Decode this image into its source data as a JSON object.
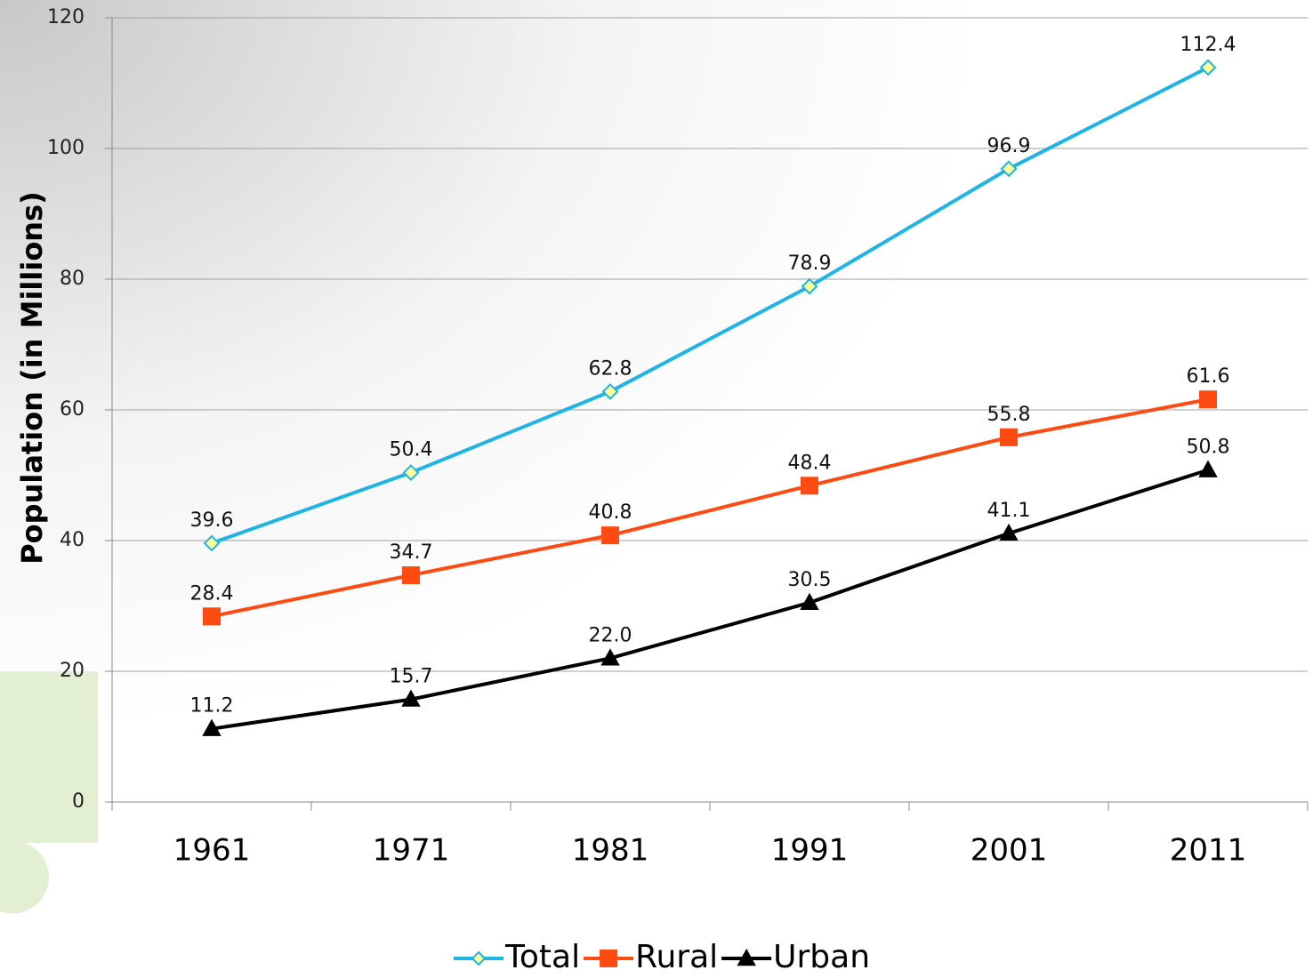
{
  "chart_data": {
    "type": "line",
    "y_label": "Population (in Millions)",
    "categories": [
      "1961",
      "1971",
      "1981",
      "1991",
      "2001",
      "2011"
    ],
    "series": [
      {
        "name": "Total",
        "color": "#1eb4e6",
        "marker": "diamond",
        "marker_fill": "#ffff99",
        "values": [
          39.6,
          50.4,
          62.8,
          78.9,
          96.9,
          112.4
        ]
      },
      {
        "name": "Rural",
        "color": "#ff4a12",
        "marker": "square",
        "marker_fill": "#ff4a12",
        "values": [
          28.4,
          34.7,
          40.8,
          48.4,
          55.8,
          61.6
        ]
      },
      {
        "name": "Urban",
        "color": "#000000",
        "marker": "triangle",
        "marker_fill": "#000000",
        "values": [
          11.2,
          15.7,
          22.0,
          30.5,
          41.1,
          50.8
        ],
        "value_labels": [
          "11.2",
          "15.7",
          "22.0",
          "30.5",
          "41.1",
          "50.8"
        ]
      }
    ],
    "ylim": [
      0,
      120
    ],
    "yticks": [
      0,
      20,
      40,
      60,
      80,
      100,
      120
    ],
    "grid": true,
    "legend": "bottom"
  }
}
